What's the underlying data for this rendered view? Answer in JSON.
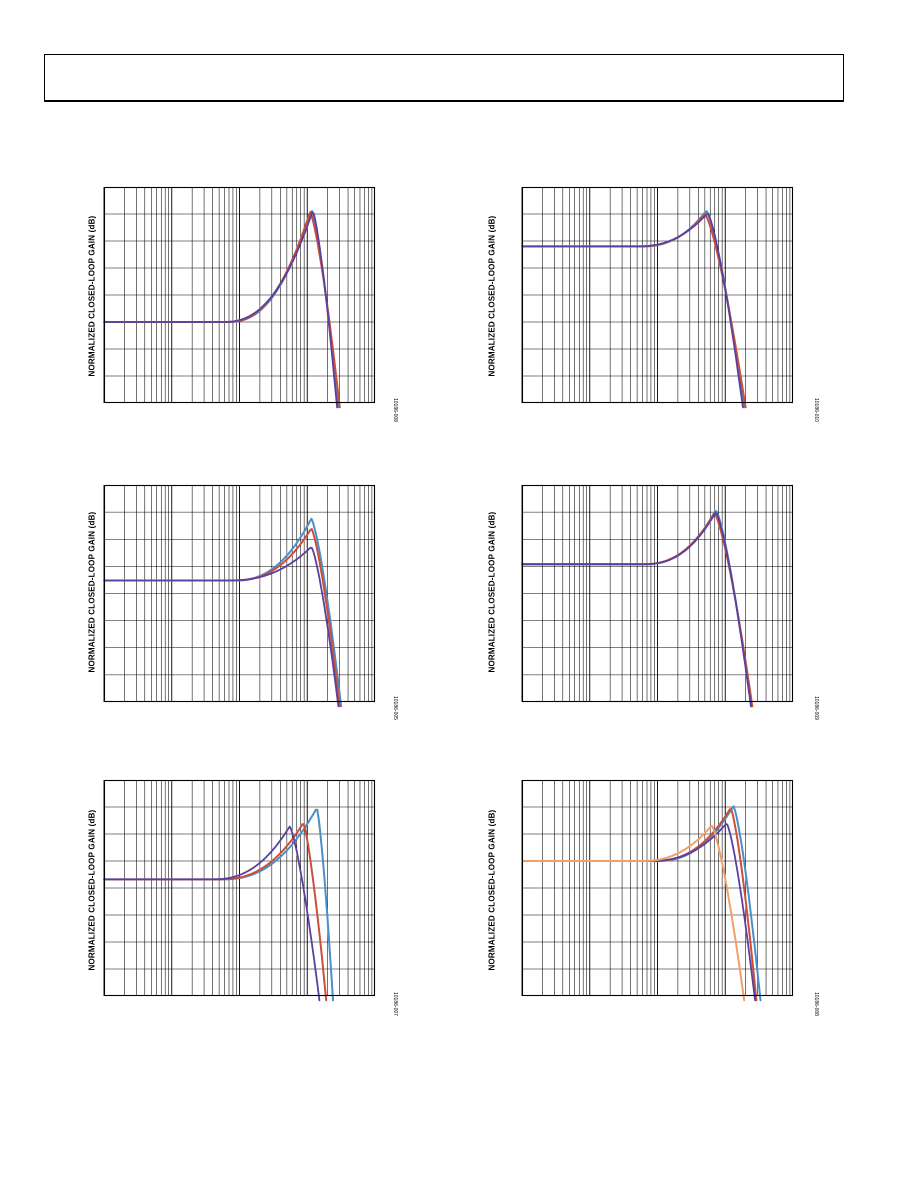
{
  "header": {
    "title": ""
  },
  "colors": {
    "blue": "#4a8fc9",
    "red": "#c9503a",
    "purple": "#5a3fa0",
    "orange": "#f2a06a",
    "grid": "#000000"
  },
  "charts": [
    {
      "ylabel": "NORMALIZED CLOSED-LOOP GAIN (dB)",
      "code": "10186-008"
    },
    {
      "ylabel": "NORMALIZED CLOSED-LOOP GAIN (dB)",
      "code": "10186-010"
    },
    {
      "ylabel": "NORMALIZED CLOSED-LOOP GAIN (dB)",
      "code": "10186-005"
    },
    {
      "ylabel": "NORMALIZED CLOSED-LOOP GAIN (dB)",
      "code": "10186-009"
    },
    {
      "ylabel": "NORMALIZED CLOSED-LOOP GAIN (dB)",
      "code": "10186-007"
    },
    {
      "ylabel": "NORMALIZED CLOSED-LOOP GAIN (dB)",
      "code": "10186-008"
    }
  ],
  "chart_data": [
    {
      "type": "line",
      "log_x": true,
      "decades": 4,
      "ylabel": "NORMALIZED CLOSED-LOOP GAIN (dB)",
      "series": [
        {
          "color": "blue",
          "flat": 0.625,
          "peak_x": 0.765,
          "peak_y": 0.105,
          "rise": 0.14,
          "fall_end_x": 0.865,
          "lw": 2.0
        },
        {
          "color": "red",
          "flat": 0.625,
          "peak_x": 0.76,
          "peak_y": 0.115,
          "rise": 0.14,
          "fall_end_x": 0.87,
          "lw": 2.0
        },
        {
          "color": "purple",
          "flat": 0.625,
          "peak_x": 0.77,
          "peak_y": 0.11,
          "rise": 0.15,
          "fall_end_x": 0.86,
          "lw": 1.8
        }
      ]
    },
    {
      "type": "line",
      "log_x": true,
      "decades": 4,
      "ylabel": "NORMALIZED CLOSED-LOOP GAIN (dB)",
      "series": [
        {
          "color": "blue",
          "flat": 0.275,
          "peak_x": 0.68,
          "peak_y": 0.11,
          "rise": 0.11,
          "fall_end_x": 0.82,
          "lw": 2.0
        },
        {
          "color": "red",
          "flat": 0.275,
          "peak_x": 0.675,
          "peak_y": 0.125,
          "rise": 0.11,
          "fall_end_x": 0.825,
          "lw": 2.0
        },
        {
          "color": "purple",
          "flat": 0.275,
          "peak_x": 0.685,
          "peak_y": 0.12,
          "rise": 0.12,
          "fall_end_x": 0.815,
          "lw": 1.8
        }
      ]
    },
    {
      "type": "line",
      "log_x": true,
      "decades": 4,
      "ylabel": "NORMALIZED CLOSED-LOOP GAIN (dB)",
      "series": [
        {
          "color": "blue",
          "flat": 0.44,
          "peak_x": 0.765,
          "peak_y": 0.155,
          "rise": 0.13,
          "fall_end_x": 0.875,
          "lw": 2.0
        },
        {
          "color": "red",
          "flat": 0.44,
          "peak_x": 0.765,
          "peak_y": 0.2,
          "rise": 0.13,
          "fall_end_x": 0.87,
          "lw": 2.0
        },
        {
          "color": "purple",
          "flat": 0.44,
          "peak_x": 0.765,
          "peak_y": 0.285,
          "rise": 0.14,
          "fall_end_x": 0.865,
          "lw": 1.8
        }
      ]
    },
    {
      "type": "line",
      "log_x": true,
      "decades": 4,
      "ylabel": "NORMALIZED CLOSED-LOOP GAIN (dB)",
      "series": [
        {
          "color": "blue",
          "flat": 0.365,
          "peak_x": 0.715,
          "peak_y": 0.115,
          "rise": 0.12,
          "fall_end_x": 0.845,
          "lw": 2.0
        },
        {
          "color": "red",
          "flat": 0.365,
          "peak_x": 0.71,
          "peak_y": 0.13,
          "rise": 0.12,
          "fall_end_x": 0.85,
          "lw": 2.0
        },
        {
          "color": "purple",
          "flat": 0.365,
          "peak_x": 0.715,
          "peak_y": 0.125,
          "rise": 0.12,
          "fall_end_x": 0.845,
          "lw": 1.8
        }
      ]
    },
    {
      "type": "line",
      "log_x": true,
      "decades": 4,
      "ylabel": "NORMALIZED CLOSED-LOOP GAIN (dB)",
      "series": [
        {
          "color": "blue",
          "flat": 0.46,
          "peak_x": 0.785,
          "peak_y": 0.13,
          "rise": 0.16,
          "fall_end_x": 0.845,
          "lw": 2.0
        },
        {
          "color": "red",
          "flat": 0.46,
          "peak_x": 0.735,
          "peak_y": 0.2,
          "rise": 0.14,
          "fall_end_x": 0.82,
          "lw": 2.0
        },
        {
          "color": "purple",
          "flat": 0.46,
          "peak_x": 0.685,
          "peak_y": 0.215,
          "rise": 0.13,
          "fall_end_x": 0.795,
          "lw": 1.8
        }
      ]
    },
    {
      "type": "line",
      "log_x": true,
      "decades": 4,
      "ylabel": "NORMALIZED CLOSED-LOOP GAIN (dB)",
      "series": [
        {
          "color": "blue",
          "flat": 0.375,
          "peak_x": 0.78,
          "peak_y": 0.12,
          "rise": 0.13,
          "fall_end_x": 0.88,
          "lw": 2.0
        },
        {
          "color": "red",
          "flat": 0.375,
          "peak_x": 0.77,
          "peak_y": 0.13,
          "rise": 0.13,
          "fall_end_x": 0.865,
          "lw": 2.0
        },
        {
          "color": "purple",
          "flat": 0.375,
          "peak_x": 0.755,
          "peak_y": 0.2,
          "rise": 0.13,
          "fall_end_x": 0.86,
          "lw": 1.8
        },
        {
          "color": "orange",
          "flat": 0.375,
          "peak_x": 0.7,
          "peak_y": 0.21,
          "rise": 0.12,
          "fall_end_x": 0.82,
          "lw": 2.0
        }
      ]
    }
  ]
}
